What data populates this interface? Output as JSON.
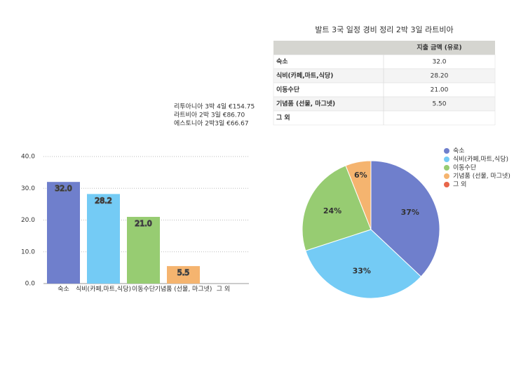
{
  "table": {
    "title": "발트 3국 일정 경비 정리 2박 3일 라트비아",
    "header": "지출 금액 (유로)",
    "rows": [
      [
        "숙소",
        "32.0"
      ],
      [
        "식비(카페,마트,식당)",
        "28.20"
      ],
      [
        "이동수단",
        "21.00"
      ],
      [
        "기념품 (선물, 마그넷)",
        "5.50"
      ],
      [
        "그 외"
      ]
    ]
  },
  "notes": [
    "리투아니아 3박 4일 €154.75",
    "라트비아 2박 3일 €86.70",
    "에스토니아 2박3일 €66.67"
  ],
  "chart_data": [
    {
      "type": "bar",
      "categories": [
        "숙소",
        "식비(카페,마트,식당)",
        "이동수단",
        "기념품 (선물, 마그넷)",
        "그 외"
      ],
      "values": [
        32.0,
        28.2,
        21.0,
        5.5,
        null
      ],
      "value_labels": [
        "32.0",
        "28.2",
        "21.0",
        "5.5",
        null
      ],
      "colors": [
        "#6f7fcc",
        "#74cbf5",
        "#97cc72",
        "#f5b46f",
        "#e8664a"
      ],
      "ylim": [
        0,
        40
      ],
      "yticks": [
        {
          "value": 0,
          "label": "0.0"
        },
        {
          "value": 10,
          "label": "10.0"
        },
        {
          "value": 20,
          "label": "20.0"
        },
        {
          "value": 30,
          "label": "30.0"
        },
        {
          "value": 40,
          "label": "40.0"
        }
      ],
      "grid": true
    },
    {
      "type": "pie",
      "categories": [
        "숙소",
        "식비(카페,마트,식당)",
        "이동수단",
        "기념품 (선물, 마그넷)",
        "그 외"
      ],
      "values": [
        37,
        33,
        24,
        6,
        null
      ],
      "value_labels": [
        "37%",
        "33%",
        "24%",
        "6%",
        null
      ],
      "colors": [
        "#6f7fcc",
        "#74cbf5",
        "#97cc72",
        "#f5b46f",
        "#e8664a"
      ],
      "legend": "top-right"
    }
  ]
}
